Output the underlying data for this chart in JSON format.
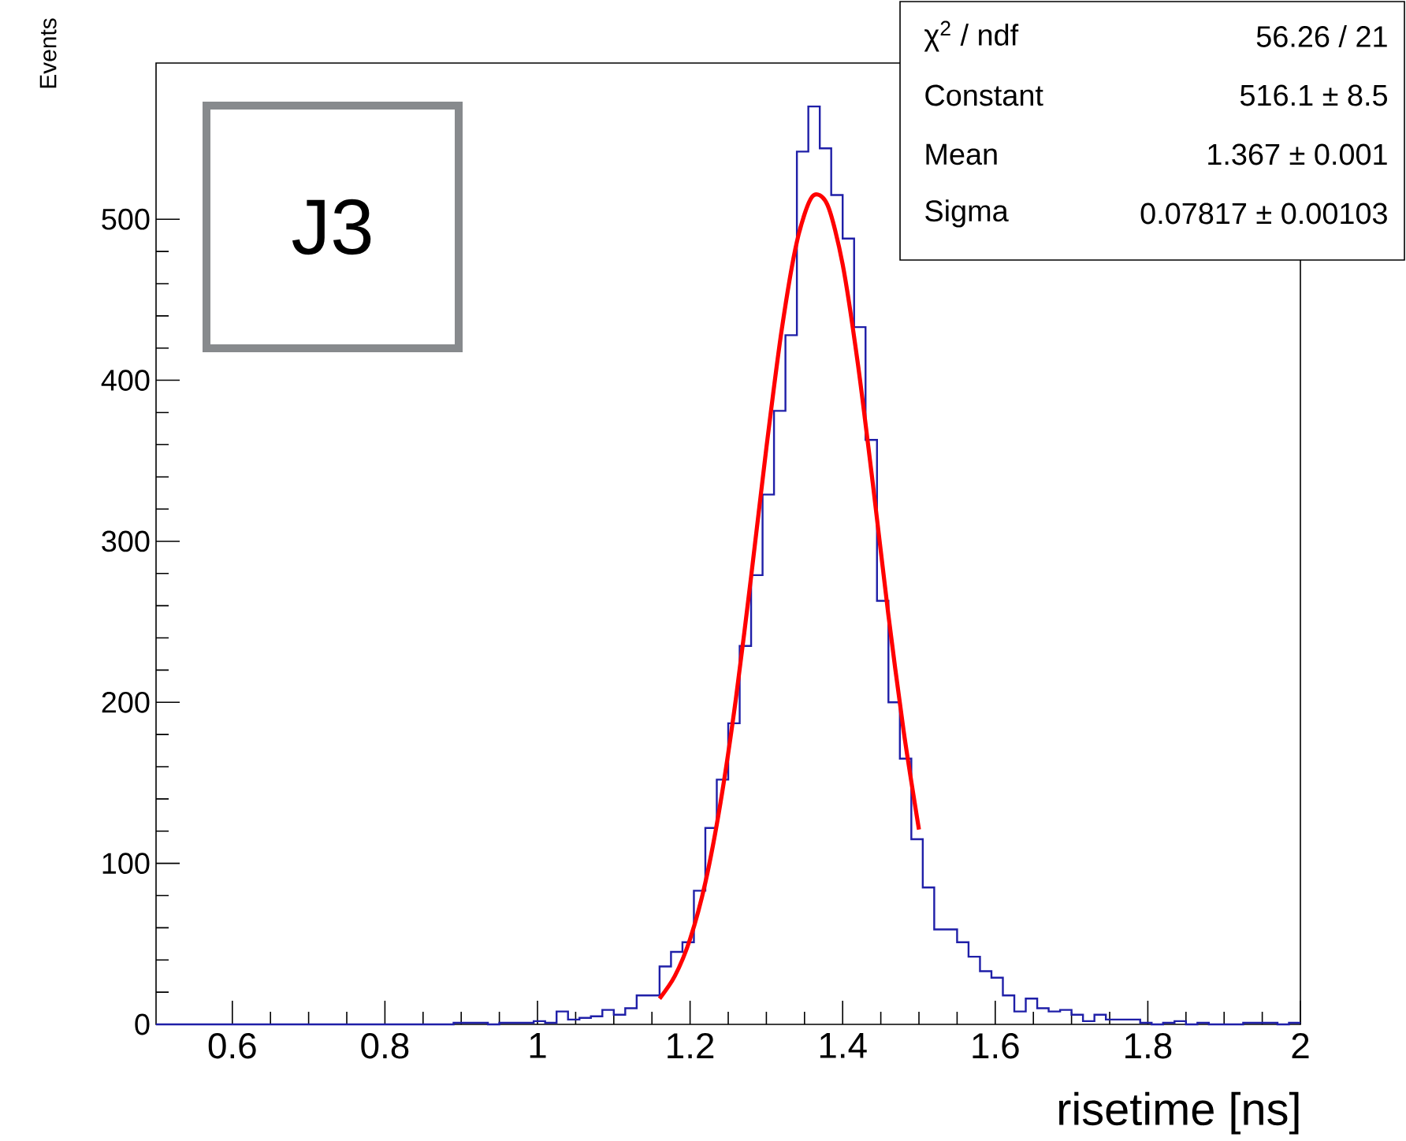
{
  "chart_data": {
    "type": "histogram",
    "xlabel": "risetime [ns]",
    "ylabel": "Events",
    "annotations": [
      "J3",
      "χ$^{2}$ / ndf",
      "56.26 / 21",
      "Constant",
      "516.1 ± 8.5",
      "Mean",
      "1.367 ± 0.001",
      "Sigma",
      "0.07817 ± 0.00103"
    ],
    "xlim": [
      0.5,
      2.0
    ],
    "ylim": [
      0,
      597
    ],
    "xticks": [
      0.6,
      0.8,
      1,
      1.2,
      1.4,
      1.6,
      1.8,
      2
    ],
    "yticks": [
      0,
      100,
      200,
      300,
      400,
      500
    ],
    "series": [
      {
        "type": "histogram",
        "color": "#1f1fa8",
        "bins": [
          0.5,
          0.515,
          0.53,
          0.545,
          0.56,
          0.575,
          0.59,
          0.605,
          0.62,
          0.635,
          0.65,
          0.665,
          0.68,
          0.695,
          0.71,
          0.725,
          0.74,
          0.755,
          0.77,
          0.785,
          0.8,
          0.815,
          0.83,
          0.845,
          0.86,
          0.875,
          0.89,
          0.905,
          0.92,
          0.935,
          0.95,
          0.965,
          0.98,
          0.995,
          1.01,
          1.025,
          1.04,
          1.055,
          1.07,
          1.085,
          1.1,
          1.115,
          1.13,
          1.145,
          1.16,
          1.175,
          1.19,
          1.205,
          1.22,
          1.235,
          1.25,
          1.265,
          1.28,
          1.295,
          1.31,
          1.325,
          1.34,
          1.355,
          1.37,
          1.385,
          1.4,
          1.415,
          1.43,
          1.445,
          1.46,
          1.475,
          1.49,
          1.505,
          1.52,
          1.535,
          1.55,
          1.565,
          1.58,
          1.595,
          1.61,
          1.625,
          1.64,
          1.655,
          1.67,
          1.685,
          1.7,
          1.715,
          1.73,
          1.745,
          1.76,
          1.775,
          1.79,
          1.805,
          1.82,
          1.835,
          1.85,
          1.865,
          1.88,
          1.895,
          1.91,
          1.925,
          1.94,
          1.955,
          1.97,
          1.985,
          2.0
        ],
        "values": [
          0,
          0,
          0,
          0,
          0,
          0,
          0,
          0,
          0,
          0,
          0,
          0,
          0,
          0,
          0,
          0,
          0,
          0,
          0,
          0,
          0,
          0,
          0,
          0,
          0,
          0,
          1,
          1,
          1,
          0,
          1,
          1,
          1,
          2,
          1,
          8,
          3,
          4,
          5,
          9,
          6,
          10,
          18,
          18,
          36,
          45,
          51,
          83,
          122,
          152,
          187,
          235,
          279,
          329,
          381,
          428,
          542,
          570,
          544,
          515,
          488,
          433,
          363,
          263,
          200,
          165,
          115,
          85,
          59,
          59,
          51,
          42,
          33,
          29,
          18,
          8,
          16,
          10,
          8,
          9,
          6,
          2,
          6,
          3,
          3,
          3,
          1,
          0,
          1,
          2,
          0,
          1,
          0,
          0,
          0,
          1,
          1,
          1,
          0,
          1
        ]
      },
      {
        "type": "line",
        "color": "#ff0000",
        "x": [
          1.16,
          1.18,
          1.2,
          1.22,
          1.24,
          1.26,
          1.28,
          1.3,
          1.32,
          1.34,
          1.36,
          1.38,
          1.4,
          1.42,
          1.44,
          1.46,
          1.48,
          1.5
        ],
        "values": [
          16,
          30,
          53,
          88,
          138,
          202,
          278,
          358,
          431,
          486,
          514,
          509,
          472,
          410,
          334,
          254,
          182,
          121
        ]
      }
    ]
  }
}
